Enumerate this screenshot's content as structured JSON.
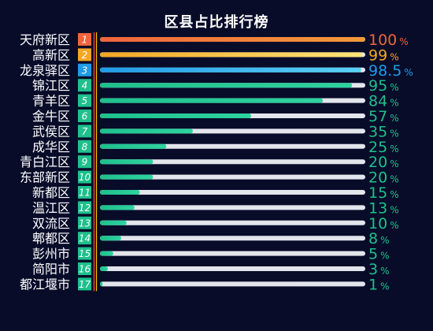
{
  "chart_data": {
    "type": "bar",
    "title": "区县占比排行榜",
    "categories": [
      "天府新区",
      "高新区",
      "龙泉驿区",
      "锦江区",
      "青羊区",
      "金牛区",
      "武侯区",
      "成华区",
      "青白江区",
      "东部新区",
      "新都区",
      "温江区",
      "双流区",
      "郫都区",
      "彭州市",
      "简阳市",
      "都江堰市"
    ],
    "ranks": [
      "1",
      "2",
      "3",
      "4",
      "5",
      "6",
      "7",
      "8",
      "9",
      "10",
      "11",
      "12",
      "13",
      "14",
      "15",
      "16",
      "17"
    ],
    "values": [
      100,
      99,
      98.5,
      95,
      84,
      57,
      35,
      25,
      20,
      20,
      15,
      13,
      10,
      8,
      5,
      3,
      1
    ],
    "value_labels": [
      "100",
      "99",
      "98.5",
      "95",
      "84",
      "57",
      "35",
      "25",
      "20",
      "20",
      "15",
      "13",
      "10",
      "8",
      "5",
      "3",
      "1"
    ],
    "unit": "%",
    "xlim": [
      0,
      100
    ],
    "grid": false,
    "legend": "none",
    "colors": {
      "background": "#080c29",
      "track": "#e3e5ec",
      "top1": "#f0643c",
      "top2": "#f5a623",
      "top3": "#1e9be8",
      "others": "#1ec08c",
      "top1_end": "#f39a3a",
      "top2_end": "#fce57a",
      "top3_end": "#5ad2f5",
      "others_end": "#2ed3a0",
      "bracket_red": "#e8452c",
      "bracket_yellow": "#f5c400",
      "label_text": "#ffffff",
      "rank_text": "#ffffff"
    }
  }
}
